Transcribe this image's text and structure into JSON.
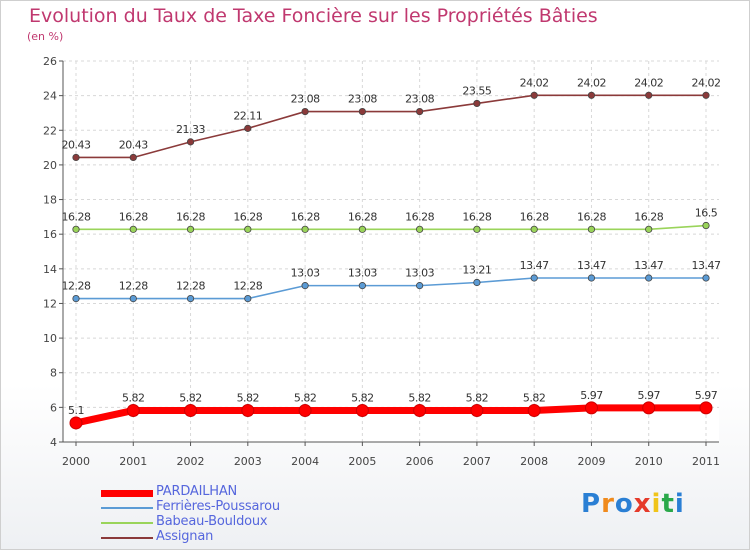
{
  "header": {
    "title": "Evolution du Taux de Taxe Foncière sur les Propriétés Bâties",
    "unit": "(en %)"
  },
  "logo": {
    "text": "Proxiti",
    "colors": [
      "#2a7fd4",
      "#f08a1c",
      "#2a7fd4",
      "#e53a2a",
      "#f0c419",
      "#2aa84a",
      "#2a7fd4"
    ]
  },
  "chart_data": {
    "type": "line",
    "title": "Evolution du Taux de Taxe Foncière sur les Propriétés Bâties",
    "ylabel": "(en %)",
    "xlabel": "",
    "x": [
      "2000",
      "2001",
      "2002",
      "2003",
      "2004",
      "2005",
      "2006",
      "2007",
      "2008",
      "2009",
      "2010",
      "2011"
    ],
    "ylim": [
      4,
      26
    ],
    "yticks": [
      "4",
      "6",
      "8",
      "10",
      "12",
      "14",
      "16",
      "18",
      "20",
      "22",
      "24",
      "26"
    ],
    "grid": true,
    "legend": "bottom-left",
    "series": [
      {
        "name": "PARDAILHAN",
        "color": "#ff0000",
        "values": [
          5.1,
          5.82,
          5.82,
          5.82,
          5.82,
          5.82,
          5.82,
          5.82,
          5.82,
          5.97,
          5.97,
          5.97
        ],
        "labels": [
          "5.1",
          "5.82",
          "5.82",
          "5.82",
          "5.82",
          "5.82",
          "5.82",
          "5.82",
          "5.82",
          "5.97",
          "5.97",
          "5.97"
        ]
      },
      {
        "name": "Ferrières-Poussarou",
        "color": "#5b9bd5",
        "values": [
          12.28,
          12.28,
          12.28,
          12.28,
          13.03,
          13.03,
          13.03,
          13.21,
          13.47,
          13.47,
          13.47,
          13.47
        ],
        "labels": [
          "12.28",
          "12.28",
          "12.28",
          "12.28",
          "13.03",
          "13.03",
          "13.03",
          "13.21",
          "13.47",
          "13.47",
          "13.47",
          "13.47"
        ]
      },
      {
        "name": "Babeau-Bouldoux",
        "color": "#9ad45a",
        "values": [
          16.28,
          16.28,
          16.28,
          16.28,
          16.28,
          16.28,
          16.28,
          16.28,
          16.28,
          16.28,
          16.28,
          16.5
        ],
        "labels": [
          "16.28",
          "16.28",
          "16.28",
          "16.28",
          "16.28",
          "16.28",
          "16.28",
          "16.28",
          "16.28",
          "16.28",
          "16.28",
          "16.5"
        ]
      },
      {
        "name": "Assignan",
        "color": "#8b3a3a",
        "values": [
          20.43,
          20.43,
          21.33,
          22.11,
          23.08,
          23.08,
          23.08,
          23.55,
          24.02,
          24.02,
          24.02,
          24.02
        ],
        "labels": [
          "20.43",
          "20.43",
          "21.33",
          "22.11",
          "23.08",
          "23.08",
          "23.08",
          "23.55",
          "24.02",
          "24.02",
          "24.02",
          "24.02"
        ]
      }
    ]
  }
}
